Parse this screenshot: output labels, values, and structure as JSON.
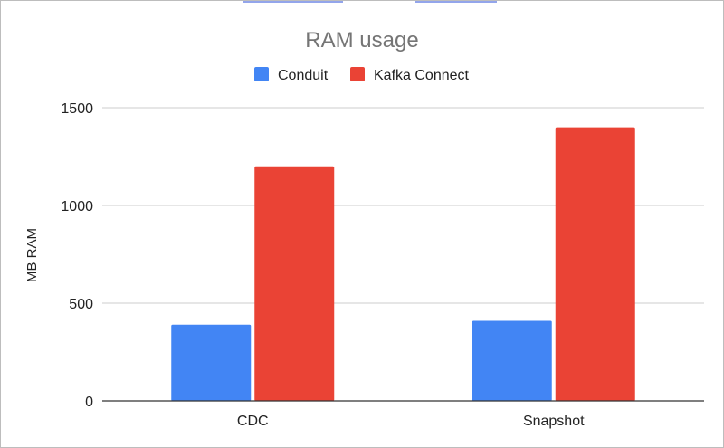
{
  "chart_data": {
    "type": "bar",
    "title": "RAM usage",
    "xlabel": "",
    "ylabel": "MB RAM",
    "categories": [
      "CDC",
      "Snapshot"
    ],
    "series": [
      {
        "name": "Conduit",
        "color": "#4285f4",
        "values": [
          390,
          410
        ]
      },
      {
        "name": "Kafka Connect",
        "color": "#ea4335",
        "values": [
          1200,
          1400
        ]
      }
    ],
    "ylim": [
      0,
      1500
    ],
    "yticks": [
      0,
      500,
      1000,
      1500
    ],
    "ytick_labels": [
      "0",
      "500",
      "1000",
      "1500"
    ],
    "grid": true,
    "legend": "top-center"
  }
}
